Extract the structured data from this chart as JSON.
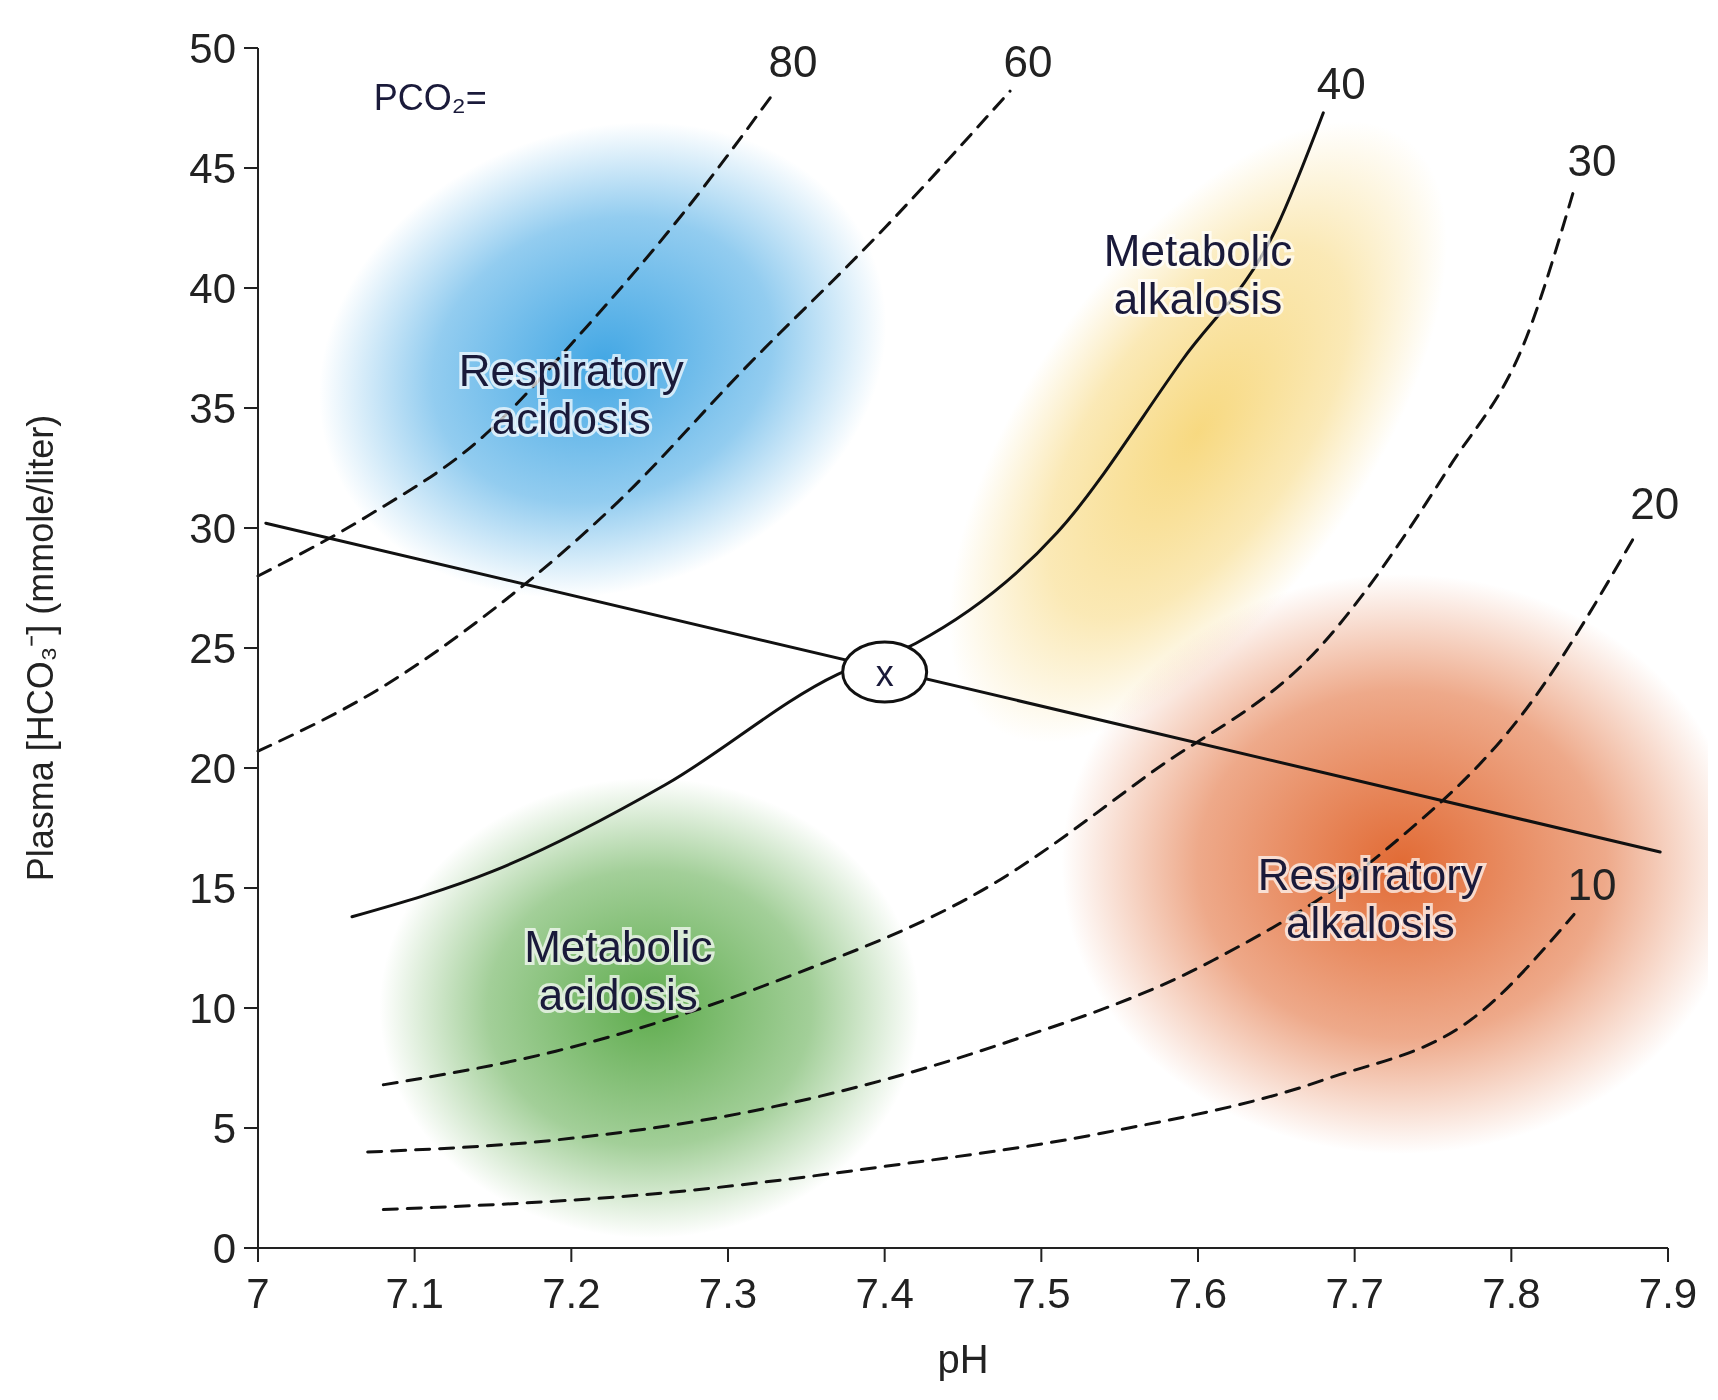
{
  "chart_data": {
    "type": "line",
    "xlabel": "pH",
    "ylabel": "Plasma [HCO₃⁻] (mmole/liter)",
    "xlim": [
      7,
      7.9
    ],
    "ylim": [
      0,
      50
    ],
    "xticks": [
      7,
      7.1,
      7.2,
      7.3,
      7.4,
      7.5,
      7.6,
      7.7,
      7.8,
      7.9
    ],
    "yticks": [
      0,
      5,
      10,
      15,
      20,
      25,
      30,
      35,
      40,
      45,
      50
    ],
    "grid": false,
    "series": [
      {
        "name": "80",
        "color": "#111111",
        "line_style": "dashed",
        "x": [
          7.0,
          7.07,
          7.14,
          7.21,
          7.27,
          7.33
        ],
        "values": [
          28.0,
          30.5,
          33.6,
          38.4,
          43.0,
          48.2
        ]
      },
      {
        "name": "60",
        "color": "#111111",
        "line_style": "dashed",
        "x": [
          7.0,
          7.08,
          7.15,
          7.23,
          7.31,
          7.4,
          7.48
        ],
        "values": [
          20.7,
          23.4,
          26.6,
          31.1,
          36.6,
          42.5,
          48.2
        ]
      },
      {
        "name": "40",
        "color": "#111111",
        "line_style": "solid",
        "x": [
          7.06,
          7.15,
          7.26,
          7.37,
          7.42,
          7.51,
          7.59,
          7.65,
          7.68
        ],
        "values": [
          13.8,
          15.7,
          19.3,
          23.9,
          25.2,
          29.8,
          37.0,
          42.5,
          47.3
        ]
      },
      {
        "name": "30",
        "color": "#111111",
        "line_style": "dashed",
        "x": [
          7.08,
          7.19,
          7.33,
          7.47,
          7.57,
          7.68,
          7.76,
          7.81,
          7.84
        ],
        "values": [
          6.8,
          8.2,
          11.1,
          15.2,
          19.8,
          25.2,
          32.5,
          38.0,
          44.1
        ]
      },
      {
        "name": "20",
        "color": "#111111",
        "line_style": "dashed",
        "x": [
          7.07,
          7.19,
          7.33,
          7.47,
          7.61,
          7.72,
          7.81,
          7.88
        ],
        "values": [
          4.0,
          4.5,
          5.9,
          8.4,
          12.0,
          16.6,
          22.5,
          29.8
        ]
      },
      {
        "name": "10",
        "color": "#111111",
        "line_style": "dashed",
        "x": [
          7.08,
          7.26,
          7.4,
          7.54,
          7.68,
          7.78,
          7.84
        ],
        "values": [
          1.6,
          2.3,
          3.4,
          4.8,
          7.0,
          9.8,
          13.9
        ]
      },
      {
        "color": "#111111",
        "line_style": "solid",
        "x": [
          7.005,
          7.895
        ],
        "values": [
          30.2,
          16.5
        ]
      }
    ],
    "annotations": [
      "PCO₂=",
      {
        "text": "x",
        "x": 7.4,
        "y": 24
      },
      "Respiratory acidosis",
      "Metabolic alkalosis",
      "Metabolic acidosis",
      "Respiratory alkalosis"
    ]
  }
}
